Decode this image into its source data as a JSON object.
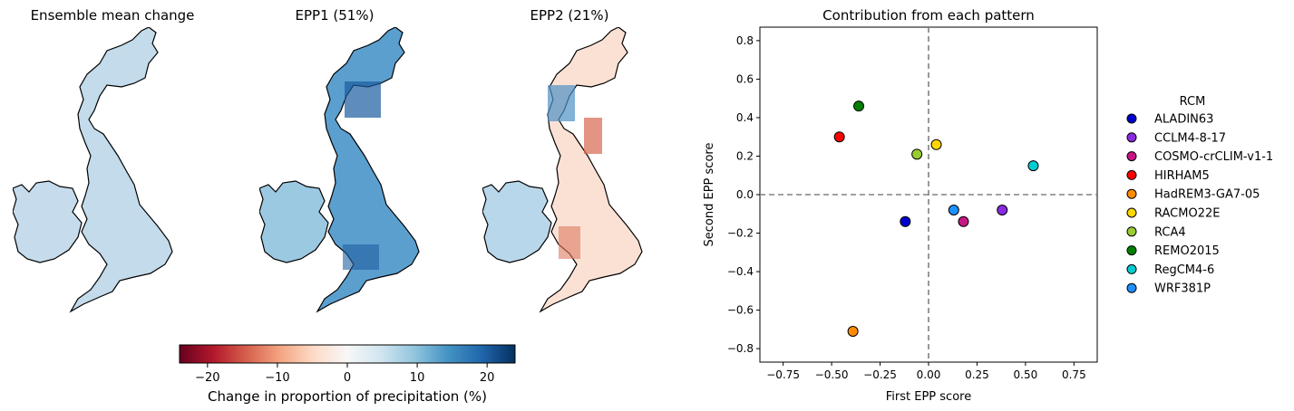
{
  "maps": [
    {
      "title": "Ensemble mean change"
    },
    {
      "title": "EPP1 (51%)"
    },
    {
      "title": "EPP2 (21%)"
    }
  ],
  "colorbar": {
    "label": "Change in proportion of precipitation (%)",
    "range": [
      -24,
      24
    ],
    "ticks": [
      "−20",
      "−10",
      "0",
      "10",
      "20"
    ],
    "tick_values": [
      -20,
      -10,
      0,
      10,
      20
    ],
    "colormap": [
      "#67001f",
      "#b2182b",
      "#d6604d",
      "#f4a582",
      "#fddbc7",
      "#f7f7f7",
      "#d1e5f0",
      "#92c5de",
      "#4393c3",
      "#2166ac",
      "#053061"
    ]
  },
  "chart_data": {
    "type": "scatter",
    "title": "Contribution from each pattern",
    "xlabel": "First EPP score",
    "ylabel": "Second EPP score",
    "xlim": [
      -0.87,
      0.87
    ],
    "ylim": [
      -0.87,
      0.87
    ],
    "xticks": [
      "−0.75",
      "−0.50",
      "−0.25",
      "0.00",
      "0.25",
      "0.50",
      "0.75"
    ],
    "xtick_values": [
      -0.75,
      -0.5,
      -0.25,
      0,
      0.25,
      0.5,
      0.75
    ],
    "yticks": [
      "0.8",
      "0.6",
      "0.4",
      "0.2",
      "0.0",
      "−0.2",
      "−0.4",
      "−0.6",
      "−0.8"
    ],
    "ytick_values": [
      0.8,
      0.6,
      0.4,
      0.2,
      0,
      -0.2,
      -0.4,
      -0.6,
      -0.8
    ],
    "reference_lines": {
      "x": 0,
      "y": 0
    },
    "legend_title": "RCM",
    "legend_placement": "outside-right",
    "series": [
      {
        "name": "ALADIN63",
        "x": -0.12,
        "y": -0.14,
        "color": "#0000cd"
      },
      {
        "name": "CCLM4-8-17",
        "x": 0.38,
        "y": -0.08,
        "color": "#8a2be2"
      },
      {
        "name": "COSMO-crCLIM-v1-1",
        "x": 0.18,
        "y": -0.14,
        "color": "#c71585"
      },
      {
        "name": "HIRHAM5",
        "x": -0.46,
        "y": 0.3,
        "color": "#ff0000"
      },
      {
        "name": "HadREM3-GA7-05",
        "x": -0.39,
        "y": -0.71,
        "color": "#ff8c00"
      },
      {
        "name": "RACMO22E",
        "x": 0.04,
        "y": 0.26,
        "color": "#ffd700"
      },
      {
        "name": "RCA4",
        "x": -0.06,
        "y": 0.21,
        "color": "#9acd32"
      },
      {
        "name": "REMO2015",
        "x": -0.36,
        "y": 0.46,
        "color": "#008000"
      },
      {
        "name": "RegCM4-6",
        "x": 0.54,
        "y": 0.15,
        "color": "#00ced1"
      },
      {
        "name": "WRF381P",
        "x": 0.13,
        "y": -0.08,
        "color": "#1e90ff"
      }
    ]
  }
}
